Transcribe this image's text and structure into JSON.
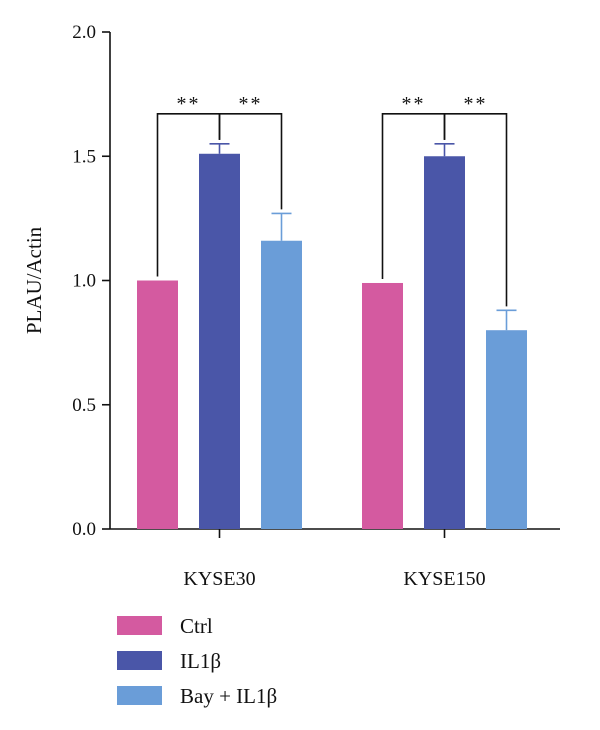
{
  "chart_data": {
    "type": "bar",
    "ylabel": "PLAU/Actin",
    "ylim": [
      0,
      2.0
    ],
    "yticks": [
      "0.0",
      "0.5",
      "1.0",
      "1.5",
      "2.0"
    ],
    "categories": [
      "KYSE30",
      "KYSE150"
    ],
    "series": [
      {
        "name": "Ctrl",
        "color": "#d45aa0",
        "values": [
          1.0,
          0.99
        ],
        "errors": [
          0,
          0
        ]
      },
      {
        "name": "IL1β",
        "color": "#4a56a8",
        "values": [
          1.51,
          1.5
        ],
        "errors": [
          0.04,
          0.05
        ]
      },
      {
        "name": "Bay + IL1β",
        "color": "#6a9dd8",
        "values": [
          1.16,
          0.8
        ],
        "errors": [
          0.11,
          0.08
        ]
      }
    ],
    "significance": [
      {
        "category": 0,
        "from_series": 0,
        "to_series": 1,
        "label": "**"
      },
      {
        "category": 0,
        "from_series": 1,
        "to_series": 2,
        "label": "**"
      },
      {
        "category": 1,
        "from_series": 0,
        "to_series": 1,
        "label": "**"
      },
      {
        "category": 1,
        "from_series": 1,
        "to_series": 2,
        "label": "**"
      }
    ],
    "legend_position": "bottom-left"
  }
}
